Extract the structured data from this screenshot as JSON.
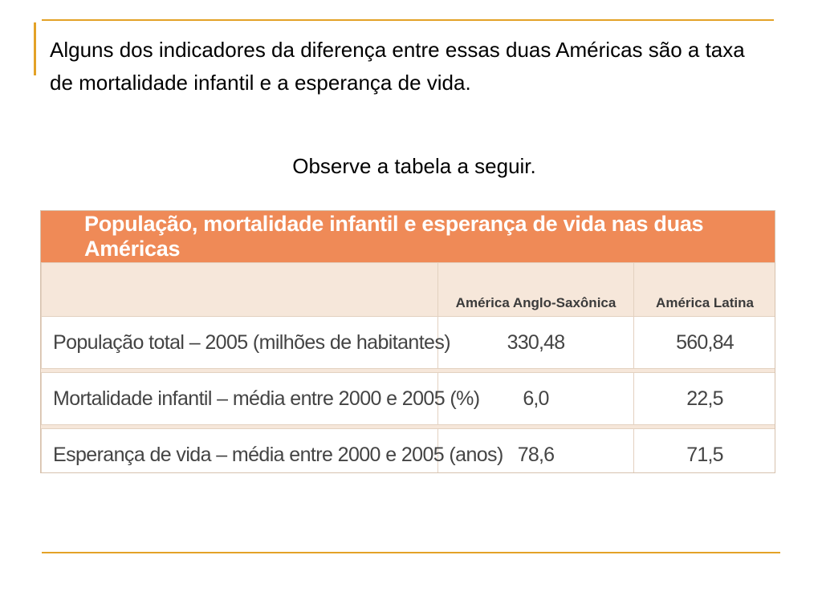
{
  "slide": {
    "intro_text": "Alguns dos indicadores da diferença entre essas duas Américas são a taxa de mortalidade infantil e a esperança de vida.",
    "instruction_text": "Observe a tabela a seguir."
  },
  "table": {
    "title": "População, mortalidade infantil e esperança de vida nas duas Américas",
    "columns": [
      "",
      "América Anglo-Saxônica",
      "América Latina"
    ],
    "rows": [
      {
        "label": "População total – 2005 (milhões de habitantes)",
        "anglo": "330,48",
        "latina": "560,84"
      },
      {
        "label": "Mortalidade infantil – média entre 2000 e 2005 (%)",
        "anglo": "6,0",
        "latina": "22,5"
      },
      {
        "label": "Esperança de vida – média entre 2000 e 2005 (anos)",
        "anglo": "78,6",
        "latina": "71,5"
      }
    ]
  },
  "colors": {
    "accent_line": "#e3a227",
    "table_title_bg": "#ef8a57",
    "table_header_bg": "#f6e7da"
  }
}
